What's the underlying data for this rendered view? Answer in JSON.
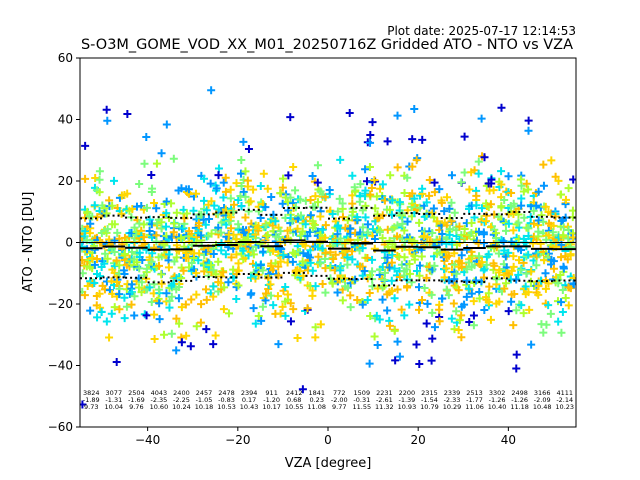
{
  "figure": {
    "plot_date": "Plot date: 2025-07-17 12:14:53",
    "title": "S-O3M_GOME_VOD_XX_M01_20250716Z Gridded ATO - NTO vs VZA"
  },
  "chart_data": {
    "type": "scatter",
    "title": "S-O3M_GOME_VOD_XX_M01_20250716Z Gridded ATO - NTO vs VZA",
    "xlabel": "VZA [degree]",
    "ylabel": "ATO - NTO [DU]",
    "xlim": [
      -55,
      55
    ],
    "ylim": [
      -60,
      60
    ],
    "xticks": [
      -40,
      -20,
      0,
      20,
      40
    ],
    "yticks": [
      -60,
      -40,
      -20,
      0,
      20,
      40,
      60
    ],
    "grid": false,
    "marker": "+",
    "colors": [
      "#0000cd",
      "#0096ff",
      "#00e5ee",
      "#7cfc7c",
      "#adff2f",
      "#ffd700",
      "#ffbf00"
    ],
    "bins": {
      "centers": [
        -52.5,
        -47.5,
        -42.5,
        -37.5,
        -32.5,
        -27.5,
        -22.5,
        -17.5,
        -12.5,
        -7.5,
        -2.5,
        2.5,
        7.5,
        12.5,
        17.5,
        22.5,
        27.5,
        32.5,
        37.5,
        42.5,
        47.5,
        52.5
      ],
      "counts": [
        "3824",
        "3077",
        "2504",
        "4043",
        "2400",
        "2457",
        "2478",
        "2394",
        "911",
        "2412",
        "1841",
        "772",
        "1509",
        "2231",
        "2200",
        "2315",
        "2339",
        "2513",
        "3302",
        "2498",
        "3166",
        "4111"
      ],
      "means": [
        "-1.89",
        "-1.31",
        "-1.69",
        "-2.35",
        "-2.25",
        "-1.05",
        "-0.83",
        "0.17",
        "-1.20",
        "0.68",
        "0.23",
        "-2.00",
        "-0.31",
        "-2.61",
        "-1.39",
        "-1.54",
        "-2.33",
        "-1.77",
        "-1.26",
        "-1.26",
        "-2.09",
        "-2.14"
      ],
      "stds": [
        "9.73",
        "10.04",
        "9.76",
        "10.60",
        "10.24",
        "10.18",
        "10.53",
        "10.43",
        "10.17",
        "10.55",
        "11.08",
        "9.77",
        "11.55",
        "11.32",
        "10.93",
        "10.79",
        "10.29",
        "11.06",
        "10.40",
        "11.18",
        "10.48",
        "10.23"
      ]
    }
  }
}
